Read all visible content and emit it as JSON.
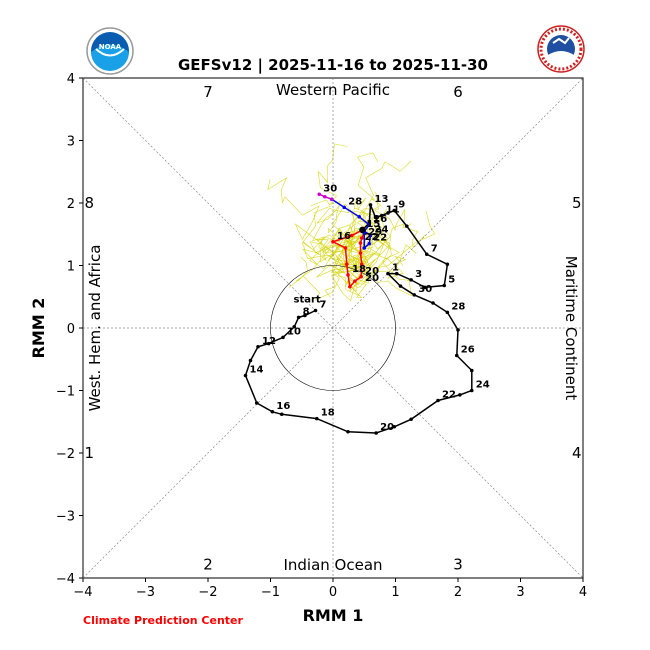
{
  "chart_data": {
    "type": "line",
    "title": "GEFSv12 | 2025-11-16 to 2025-11-30",
    "xlabel": "RMM 1",
    "ylabel": "RMM 2",
    "xlim": [
      -4,
      4
    ],
    "ylim": [
      -4,
      4
    ],
    "xticks": [
      "−4",
      "−3",
      "−2",
      "−1",
      "0",
      "1",
      "2",
      "3",
      "4"
    ],
    "yticks": [
      "−4",
      "−3",
      "−2",
      "−1",
      "0",
      "1",
      "2",
      "3",
      "4"
    ],
    "regions": {
      "top": "Western Pacific",
      "bottom": "Indian Ocean",
      "left": "West. Hem. and Africa",
      "right": "Maritime Continent"
    },
    "phases": [
      {
        "label": "1",
        "x": -3.9,
        "y": -2.0
      },
      {
        "label": "2",
        "x": -2.0,
        "y": -3.78
      },
      {
        "label": "3",
        "x": 2.0,
        "y": -3.78
      },
      {
        "label": "4",
        "x": 3.9,
        "y": -2.0
      },
      {
        "label": "5",
        "x": 3.9,
        "y": 2.0
      },
      {
        "label": "6",
        "x": 2.0,
        "y": 3.78
      },
      {
        "label": "7",
        "x": -2.0,
        "y": 3.78
      },
      {
        "label": "8",
        "x": -3.9,
        "y": 2.0
      }
    ],
    "circle_radius": 1,
    "start_label": "start",
    "series": [
      {
        "color": "#000000",
        "points": [
          {
            "x": -0.28,
            "y": 0.28,
            "label": "7"
          },
          {
            "x": -0.45,
            "y": 0.2
          },
          {
            "x": -0.55,
            "y": 0.17,
            "label": "8"
          },
          {
            "x": -0.62,
            "y": 0.02
          },
          {
            "x": -0.8,
            "y": -0.15,
            "label": "10"
          },
          {
            "x": -1.03,
            "y": -0.25
          },
          {
            "x": -1.2,
            "y": -0.3,
            "label": "12"
          },
          {
            "x": -1.32,
            "y": -0.52
          },
          {
            "x": -1.4,
            "y": -0.76,
            "label": "14"
          },
          {
            "x": -1.22,
            "y": -1.2
          },
          {
            "x": -0.97,
            "y": -1.34,
            "label": "16"
          },
          {
            "x": -0.82,
            "y": -1.38
          },
          {
            "x": -0.26,
            "y": -1.45,
            "label": "18"
          },
          {
            "x": 0.24,
            "y": -1.66
          },
          {
            "x": 0.69,
            "y": -1.68,
            "label": "20"
          },
          {
            "x": 0.98,
            "y": -1.58
          },
          {
            "x": 1.25,
            "y": -1.46
          },
          {
            "x": 1.68,
            "y": -1.16,
            "label": "22"
          },
          {
            "x": 2.03,
            "y": -1.07
          },
          {
            "x": 2.22,
            "y": -1.0,
            "label": "24"
          },
          {
            "x": 2.22,
            "y": -0.68
          },
          {
            "x": 1.98,
            "y": -0.44,
            "label": "26"
          },
          {
            "x": 2.0,
            "y": -0.03
          },
          {
            "x": 1.83,
            "y": 0.25,
            "label": "28"
          },
          {
            "x": 1.6,
            "y": 0.4
          },
          {
            "x": 1.3,
            "y": 0.53,
            "label": "30"
          },
          {
            "x": 1.08,
            "y": 0.67
          },
          {
            "x": 0.88,
            "y": 0.87,
            "label": "1"
          },
          {
            "x": 1.02,
            "y": 0.87
          },
          {
            "x": 1.25,
            "y": 0.77,
            "label": "3"
          },
          {
            "x": 1.47,
            "y": 0.65
          },
          {
            "x": 1.78,
            "y": 0.68,
            "label": "5"
          },
          {
            "x": 1.83,
            "y": 1.02
          },
          {
            "x": 1.5,
            "y": 1.18,
            "label": "7"
          },
          {
            "x": 1.18,
            "y": 1.63
          },
          {
            "x": 0.98,
            "y": 1.88,
            "label": "9"
          },
          {
            "x": 0.88,
            "y": 1.84
          },
          {
            "x": 0.78,
            "y": 1.8,
            "label": "11"
          },
          {
            "x": 0.68,
            "y": 1.77
          },
          {
            "x": 0.6,
            "y": 1.97,
            "label": "13"
          },
          {
            "x": 0.58,
            "y": 1.68
          },
          {
            "x": 0.47,
            "y": 1.57,
            "label": "15"
          }
        ]
      },
      {
        "color": "#ff0000",
        "points": [
          {
            "x": 0.47,
            "y": 1.57
          },
          {
            "x": 0.3,
            "y": 1.48
          },
          {
            "x": 0.0,
            "y": 1.38,
            "label": "16"
          },
          {
            "x": 0.2,
            "y": 1.28
          },
          {
            "x": 0.22,
            "y": 1.02
          },
          {
            "x": 0.24,
            "y": 0.85,
            "label": "18"
          },
          {
            "x": 0.27,
            "y": 0.66
          },
          {
            "x": 0.35,
            "y": 0.75
          },
          {
            "x": 0.45,
            "y": 0.82,
            "label": "20"
          },
          {
            "x": 0.46,
            "y": 1.02
          },
          {
            "x": 0.44,
            "y": 1.2
          },
          {
            "x": 0.44,
            "y": 1.36,
            "label": "22"
          },
          {
            "x": 0.46,
            "y": 1.44
          },
          {
            "x": 0.5,
            "y": 1.52
          }
        ]
      },
      {
        "color": "#0000ff",
        "points": [
          {
            "x": 0.5,
            "y": 1.52
          },
          {
            "x": 0.5,
            "y": 1.28
          },
          {
            "x": 0.58,
            "y": 1.35,
            "label": "22"
          },
          {
            "x": 0.6,
            "y": 1.48,
            "label": "24"
          },
          {
            "x": 0.5,
            "y": 1.55
          },
          {
            "x": 0.58,
            "y": 1.65,
            "label": "26"
          },
          {
            "x": 0.42,
            "y": 1.78
          },
          {
            "x": 0.18,
            "y": 1.93,
            "label": "28"
          },
          {
            "x": -0.02,
            "y": 2.06
          }
        ]
      },
      {
        "color": "#cc00cc",
        "points": [
          {
            "x": -0.02,
            "y": 2.06
          },
          {
            "x": -0.13,
            "y": 2.1
          },
          {
            "x": -0.22,
            "y": 2.14,
            "label": "30"
          }
        ]
      }
    ],
    "extra_labels": [
      {
        "text": "29",
        "x": 0.5,
        "y": 1.55
      },
      {
        "text": "20",
        "x": 0.45,
        "y": 0.82
      }
    ],
    "ensemble_color": "#d4d400",
    "credit": "Climate Prediction Center"
  },
  "logos": {
    "left": "NOAA",
    "right": "NATIONAL WEATHER SERVICE"
  }
}
